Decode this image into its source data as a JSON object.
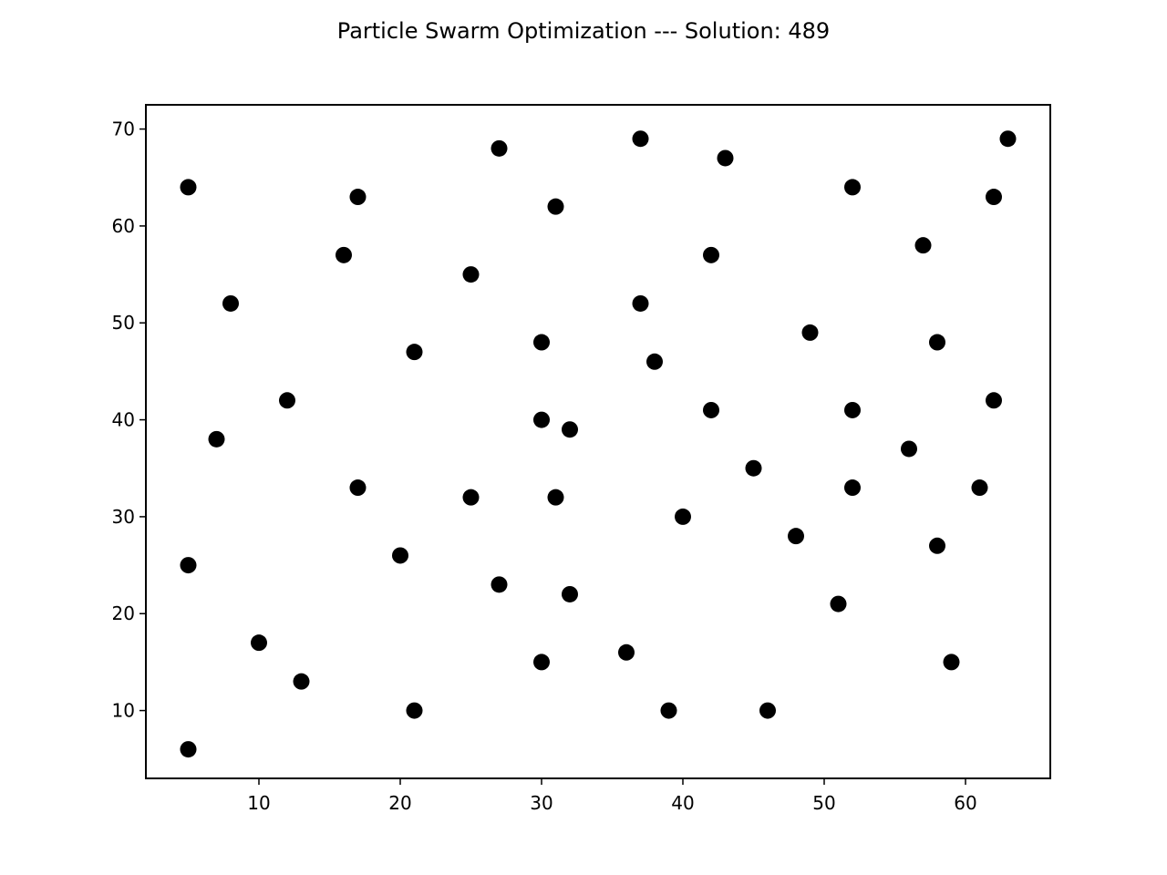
{
  "chart_data": {
    "type": "scatter",
    "title": "Particle Swarm Optimization --- Solution: 489",
    "xlabel": "",
    "ylabel": "",
    "xlim": [
      2,
      66
    ],
    "ylim": [
      3,
      72.5
    ],
    "x_ticks": [
      10,
      20,
      30,
      40,
      50,
      60
    ],
    "y_ticks": [
      10,
      20,
      30,
      40,
      50,
      60,
      70
    ],
    "grid": false,
    "marker_color": "#000000",
    "series": [
      {
        "points": [
          {
            "x": 5,
            "y": 64
          },
          {
            "x": 5,
            "y": 25
          },
          {
            "x": 5,
            "y": 6
          },
          {
            "x": 7,
            "y": 38
          },
          {
            "x": 8,
            "y": 52
          },
          {
            "x": 10,
            "y": 17
          },
          {
            "x": 12,
            "y": 42
          },
          {
            "x": 13,
            "y": 13
          },
          {
            "x": 16,
            "y": 57
          },
          {
            "x": 17,
            "y": 63
          },
          {
            "x": 17,
            "y": 33
          },
          {
            "x": 20,
            "y": 26
          },
          {
            "x": 21,
            "y": 47
          },
          {
            "x": 21,
            "y": 10
          },
          {
            "x": 25,
            "y": 55
          },
          {
            "x": 25,
            "y": 32
          },
          {
            "x": 27,
            "y": 68
          },
          {
            "x": 27,
            "y": 23
          },
          {
            "x": 30,
            "y": 48
          },
          {
            "x": 30,
            "y": 40
          },
          {
            "x": 30,
            "y": 15
          },
          {
            "x": 31,
            "y": 62
          },
          {
            "x": 31,
            "y": 32
          },
          {
            "x": 32,
            "y": 39
          },
          {
            "x": 32,
            "y": 22
          },
          {
            "x": 36,
            "y": 16
          },
          {
            "x": 37,
            "y": 69
          },
          {
            "x": 37,
            "y": 52
          },
          {
            "x": 38,
            "y": 46
          },
          {
            "x": 39,
            "y": 10
          },
          {
            "x": 40,
            "y": 30
          },
          {
            "x": 42,
            "y": 57
          },
          {
            "x": 42,
            "y": 41
          },
          {
            "x": 43,
            "y": 67
          },
          {
            "x": 45,
            "y": 35
          },
          {
            "x": 46,
            "y": 10
          },
          {
            "x": 48,
            "y": 28
          },
          {
            "x": 49,
            "y": 49
          },
          {
            "x": 51,
            "y": 21
          },
          {
            "x": 52,
            "y": 64
          },
          {
            "x": 52,
            "y": 41
          },
          {
            "x": 52,
            "y": 33
          },
          {
            "x": 56,
            "y": 37
          },
          {
            "x": 57,
            "y": 58
          },
          {
            "x": 58,
            "y": 48
          },
          {
            "x": 58,
            "y": 27
          },
          {
            "x": 59,
            "y": 15
          },
          {
            "x": 61,
            "y": 33
          },
          {
            "x": 62,
            "y": 63
          },
          {
            "x": 62,
            "y": 42
          },
          {
            "x": 63,
            "y": 69
          }
        ]
      }
    ]
  }
}
